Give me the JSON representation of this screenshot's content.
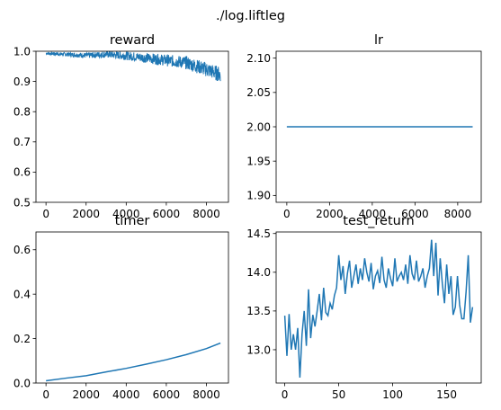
{
  "figure": {
    "suptitle": "./log.liftleg",
    "line_color": "#1f77b4"
  },
  "chart_data": [
    {
      "type": "line",
      "title": "reward",
      "xlim": [
        -500,
        9100
      ],
      "ylim": [
        0.5,
        1.0
      ],
      "xticks": [
        0,
        2000,
        4000,
        6000,
        8000
      ],
      "yticks": [
        0.5,
        0.6,
        0.7,
        0.8,
        0.9,
        1.0
      ],
      "ytick_labels": [
        "0.5",
        "0.6",
        "0.7",
        "0.8",
        "0.9",
        "1.0"
      ],
      "noisy_band": true,
      "series": [
        {
          "x": [
            0,
            1000,
            2000,
            3000,
            4000,
            5000,
            6000,
            7000,
            8000,
            8600,
            8700
          ],
          "y": [
            0.993,
            0.99,
            0.986,
            0.99,
            0.985,
            0.978,
            0.97,
            0.962,
            0.94,
            0.925,
            0.925
          ]
        }
      ]
    },
    {
      "type": "line",
      "title": "lr",
      "xlim": [
        -500,
        9100
      ],
      "ylim": [
        1.89,
        2.11
      ],
      "xticks": [
        0,
        2000,
        4000,
        6000,
        8000
      ],
      "yticks": [
        1.9,
        1.95,
        2.0,
        2.05,
        2.1
      ],
      "ytick_labels": [
        "1.90",
        "1.95",
        "2.00",
        "2.05",
        "2.10"
      ],
      "series": [
        {
          "x": [
            0,
            8700
          ],
          "y": [
            2.0,
            2.0
          ]
        }
      ]
    },
    {
      "type": "line",
      "title": "timer",
      "xlim": [
        -500,
        9100
      ],
      "ylim": [
        0.0,
        0.68
      ],
      "xticks": [
        0,
        2000,
        4000,
        6000,
        8000
      ],
      "yticks": [
        0.0,
        0.2,
        0.4,
        0.6
      ],
      "ytick_labels": [
        "0.0",
        "0.2",
        "0.4",
        "0.6"
      ],
      "series": [
        {
          "x": [
            0,
            1000,
            2000,
            3000,
            4000,
            5000,
            6000,
            7000,
            8000,
            8700
          ],
          "y": [
            0.01,
            0.022,
            0.033,
            0.05,
            0.066,
            0.085,
            0.105,
            0.128,
            0.155,
            0.18
          ]
        }
      ]
    },
    {
      "type": "line",
      "title": "test_return",
      "xlim": [
        -8,
        182
      ],
      "ylim": [
        12.57,
        14.52
      ],
      "xticks": [
        0,
        50,
        100,
        150
      ],
      "yticks": [
        13.0,
        13.5,
        14.0,
        14.5
      ],
      "ytick_labels": [
        "13.0",
        "13.5",
        "14.0",
        "14.5"
      ],
      "series": [
        {
          "x": [
            0,
            2,
            4,
            6,
            8,
            10,
            12,
            14,
            16,
            18,
            20,
            22,
            24,
            26,
            28,
            30,
            32,
            34,
            36,
            38,
            40,
            42,
            44,
            46,
            48,
            50,
            52,
            54,
            56,
            58,
            60,
            62,
            64,
            66,
            68,
            70,
            72,
            74,
            76,
            78,
            80,
            82,
            84,
            86,
            88,
            90,
            92,
            94,
            96,
            98,
            100,
            102,
            104,
            106,
            108,
            110,
            112,
            114,
            116,
            118,
            120,
            122,
            124,
            126,
            128,
            130,
            132,
            134,
            136,
            138,
            140,
            142,
            144,
            146,
            148,
            150,
            152,
            154,
            156,
            158,
            160,
            162,
            164,
            166,
            168,
            170,
            172,
            174
          ],
          "y": [
            13.44,
            12.92,
            13.46,
            13.0,
            13.2,
            13.0,
            13.28,
            12.64,
            13.2,
            13.5,
            13.05,
            13.78,
            13.15,
            13.45,
            13.3,
            13.5,
            13.72,
            13.38,
            13.8,
            13.48,
            13.44,
            13.6,
            13.52,
            13.7,
            13.8,
            14.22,
            13.9,
            14.08,
            13.72,
            13.98,
            14.15,
            13.8,
            13.95,
            14.1,
            13.85,
            14.05,
            13.9,
            14.18,
            14.0,
            13.88,
            14.12,
            13.78,
            13.95,
            14.02,
            13.86,
            14.2,
            13.9,
            13.8,
            14.05,
            13.92,
            13.82,
            14.18,
            13.88,
            13.95,
            14.0,
            13.9,
            14.1,
            13.85,
            14.22,
            13.98,
            13.9,
            14.15,
            13.88,
            13.95,
            14.05,
            13.8,
            13.95,
            14.05,
            14.42,
            13.95,
            14.38,
            13.7,
            14.18,
            13.85,
            13.6,
            14.1,
            13.72,
            13.95,
            13.45,
            13.55,
            13.95,
            13.58,
            13.4,
            13.4,
            13.75,
            14.22,
            13.35,
            13.55
          ],
          "x_extent_note": ""
        }
      ]
    }
  ]
}
